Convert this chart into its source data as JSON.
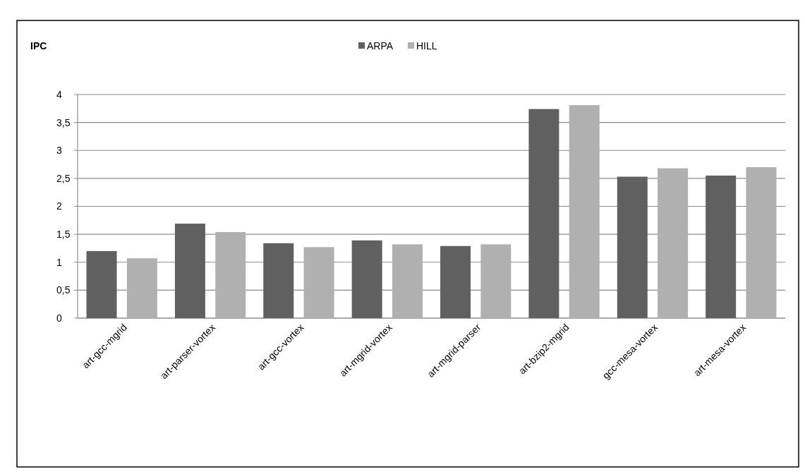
{
  "chart_data": {
    "type": "bar",
    "ylabel": "IPC",
    "categories": [
      "art-gcc-mgrid",
      "art-parser-vortex",
      "art-gcc-vortex",
      "art-mgrid-vortex",
      "art-mgrid-parser",
      "art-bzip2-mgrid",
      "gcc-mesa-vortex",
      "art-mesa-vortex"
    ],
    "series": [
      {
        "name": "ARPA",
        "color": "#606060",
        "values": [
          1.2,
          1.69,
          1.34,
          1.39,
          1.29,
          3.74,
          2.53,
          2.55
        ]
      },
      {
        "name": "HILL",
        "color": "#b0b0b0",
        "values": [
          1.07,
          1.54,
          1.27,
          1.32,
          1.32,
          3.81,
          2.68,
          2.7
        ]
      }
    ],
    "ylim": [
      0,
      4
    ],
    "yticks": [
      0,
      {
        "value": 0.5,
        "label": "0,5"
      },
      1,
      {
        "value": 1.5,
        "label": "1,5"
      },
      2,
      {
        "value": 2.5,
        "label": "2,5"
      },
      3,
      {
        "value": 3.5,
        "label": "3,5"
      },
      4
    ],
    "grid": "y",
    "legend": "top"
  }
}
